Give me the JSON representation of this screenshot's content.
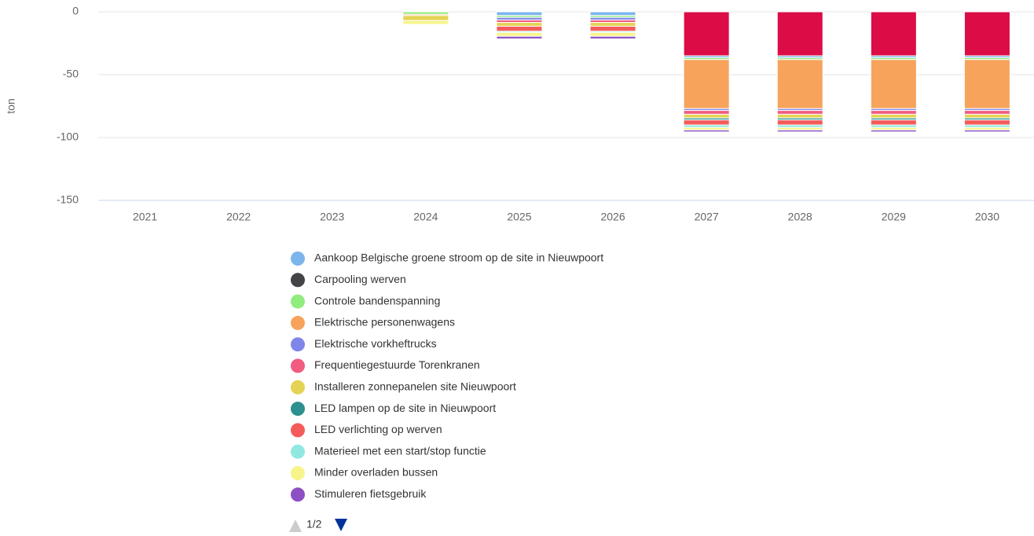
{
  "chart_data": {
    "type": "bar",
    "stacked": true,
    "y_label": "ton",
    "categories": [
      "2021",
      "2022",
      "2023",
      "2024",
      "2025",
      "2026",
      "2027",
      "2028",
      "2029",
      "2030"
    ],
    "ylim": [
      -150,
      5
    ],
    "yticks": [
      0,
      -50,
      -100,
      -150
    ],
    "grid": true,
    "series": [
      {
        "color": "#dc0d46",
        "values": [
          0,
          0,
          0,
          0,
          0,
          0,
          -35,
          -35,
          -35,
          -35
        ]
      },
      {
        "name": "Aankoop Belgische groene stroom op de site in Nieuwpoort",
        "color": "#7cb5ec",
        "values": [
          0,
          0,
          0,
          0,
          -3,
          -3,
          -1.5,
          -1.5,
          -1.5,
          -1.5
        ]
      },
      {
        "name": "Carpooling werven",
        "color": "#434348",
        "values": [
          0,
          0,
          0,
          0,
          0,
          0,
          0,
          0,
          0,
          0
        ]
      },
      {
        "name": "Controle bandenspanning",
        "color": "#90ed7d",
        "values": [
          0,
          0,
          0,
          -2,
          -1.5,
          -1.5,
          -1.5,
          -1.5,
          -1.5,
          -1.5
        ]
      },
      {
        "name": "Elektrische personenwagens",
        "color": "#f7a35c",
        "values": [
          0,
          0,
          0,
          -1,
          0,
          0,
          -39,
          -39,
          -39,
          -39
        ]
      },
      {
        "name": "Elektrische vorkheftrucks",
        "color": "#8085e9",
        "values": [
          0,
          0,
          0,
          0,
          -2,
          -2,
          -1.5,
          -1.5,
          -1.5,
          -1.5
        ]
      },
      {
        "name": "Frequentiegestuurde Torenkranen",
        "color": "#f15c80",
        "values": [
          0,
          0,
          0,
          0,
          -2,
          -2,
          -3,
          -3,
          -3,
          -3
        ]
      },
      {
        "name": "Installeren zonnepanelen site Nieuwpoort",
        "color": "#e4d354",
        "values": [
          0,
          0,
          0,
          -4,
          -3,
          -3,
          -3,
          -3,
          -3,
          -3
        ]
      },
      {
        "name": "LED lampen op de site in Nieuwpoort",
        "color": "#2b908f",
        "values": [
          0,
          0,
          0,
          0,
          0,
          0,
          -1.5,
          -1.5,
          -1.5,
          -1.5
        ]
      },
      {
        "name": "LED verlichting op werven",
        "color": "#f45b5b",
        "values": [
          0,
          0,
          0,
          0,
          -4,
          -4,
          -4,
          -4,
          -4,
          -4
        ]
      },
      {
        "name": "Materieel met een start/stop functie",
        "color": "#91e8e1",
        "values": [
          0,
          0,
          0,
          0,
          -1,
          -1,
          -2,
          -2,
          -2,
          -2
        ]
      },
      {
        "name": "Minder overladen bussen",
        "color": "#f7f48a",
        "values": [
          0,
          0,
          0,
          -3,
          -3,
          -3,
          -2,
          -2,
          -2,
          -2
        ]
      },
      {
        "name": "Stimuleren fietsgebruik",
        "color": "#8d4fc4",
        "values": [
          0,
          0,
          0,
          0,
          -2,
          -2,
          -1.5,
          -1.5,
          -1.5,
          -1.5
        ]
      }
    ],
    "legend_page": "1/2"
  }
}
